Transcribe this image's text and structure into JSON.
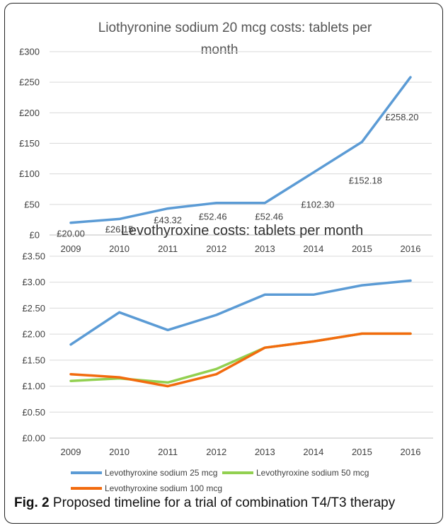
{
  "chart_data": [
    {
      "type": "line",
      "title": "Liothyronine sodium  20 mcg costs: tablets per month",
      "categories": [
        "2009",
        "2010",
        "2011",
        "2012",
        "2013",
        "2014",
        "2015",
        "2016"
      ],
      "series": [
        {
          "values": [
            20.0,
            26.15,
            43.32,
            52.46,
            52.46,
            102.3,
            152.18,
            258.2
          ],
          "color": "#5b9bd5"
        }
      ],
      "data_labels": [
        "£20.00",
        "£26.15",
        "£43.32",
        "£52.46",
        "£52.46",
        "£102.30",
        "£152.18",
        "£258.20"
      ],
      "yticks": [
        "£0",
        "£50",
        "£100",
        "£150",
        "£200",
        "£250",
        "£300"
      ],
      "ylim": [
        0,
        300
      ],
      "grid": true
    },
    {
      "type": "line",
      "title": "Levothyroxine costs: tablets per month",
      "categories": [
        "2009",
        "2010",
        "2011",
        "2012",
        "2013",
        "2014",
        "2015",
        "2016"
      ],
      "series": [
        {
          "name": "Levothyroxine sodium  25 mcg",
          "values": [
            1.8,
            2.42,
            2.08,
            2.37,
            2.76,
            2.76,
            2.94,
            3.03
          ],
          "color": "#5b9bd5"
        },
        {
          "name": "Levothyroxine sodium  50 mcg",
          "values": [
            1.1,
            1.15,
            1.07,
            1.33,
            1.74,
            1.86,
            2.01,
            2.01
          ],
          "color": "#92d050"
        },
        {
          "name": "Levothyroxine sodium  100 mcg",
          "values": [
            1.23,
            1.17,
            1.0,
            1.23,
            1.74,
            1.86,
            2.01,
            2.01
          ],
          "color": "#f26b0e"
        }
      ],
      "yticks": [
        "£0.00",
        "£0.50",
        "£1.00",
        "£1.50",
        "£2.00",
        "£2.50",
        "£3.00",
        "£3.50"
      ],
      "ylim": [
        0,
        3.5
      ],
      "grid": true,
      "legend": "bottom"
    }
  ],
  "caption": {
    "label": "Fig. 2",
    "text": "Proposed timeline for a trial of combination T4/T3 therapy"
  }
}
